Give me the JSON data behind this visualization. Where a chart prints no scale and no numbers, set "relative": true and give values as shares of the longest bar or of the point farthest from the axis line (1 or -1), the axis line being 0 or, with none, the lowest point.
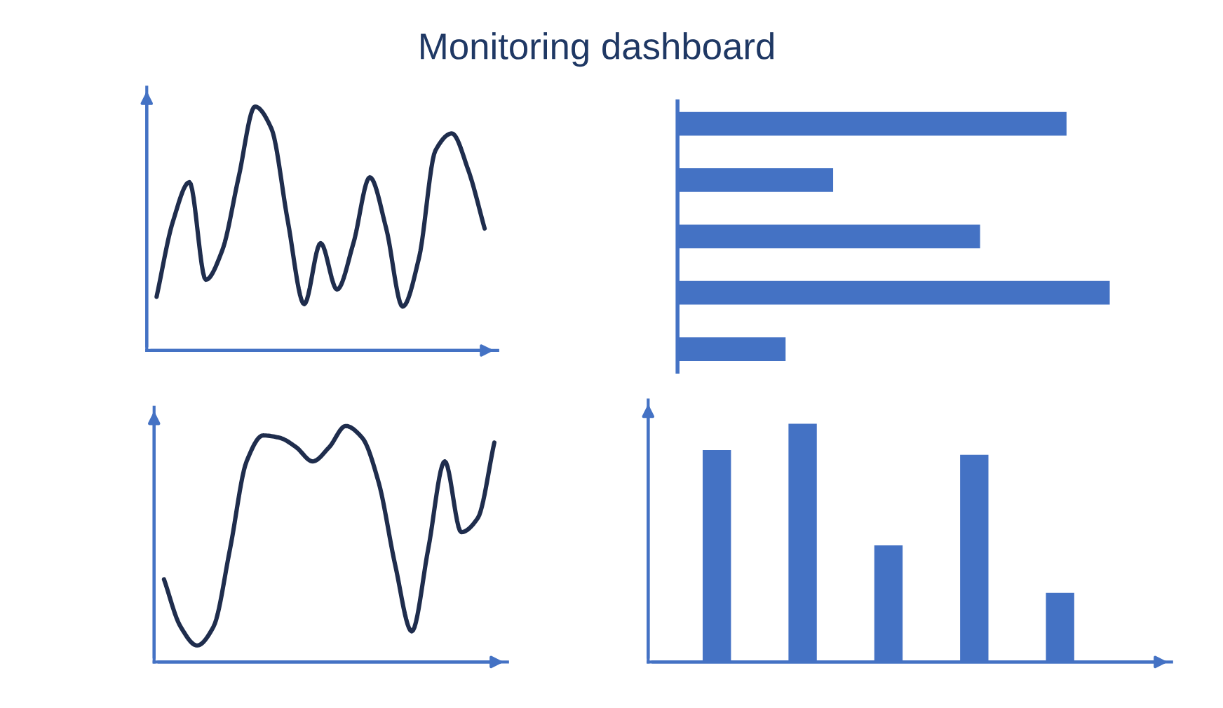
{
  "chart_data": [
    {
      "type": "line",
      "title": "Monitoring dashboard",
      "relative": true,
      "categories": [
        null,
        null,
        null,
        null,
        null,
        null,
        null,
        null,
        null,
        null,
        null,
        null,
        null,
        null,
        null,
        null,
        null,
        null,
        null,
        null,
        null
      ],
      "series": [
        {
          "color": "#1f2d4d",
          "values": [
            0.22,
            0.53,
            0.69,
            0.29,
            0.41,
            0.71,
            1.0,
            0.91,
            0.53,
            0.19,
            0.44,
            0.25,
            0.44,
            0.71,
            0.5,
            0.18,
            0.38,
            0.82,
            0.89,
            0.74,
            0.5
          ]
        }
      ]
    },
    {
      "type": "bar",
      "orientation": "horizontal",
      "relative": true,
      "categories": [
        null,
        null,
        null,
        null,
        null
      ],
      "series": [
        {
          "color": "#4472c4",
          "values": [
            0.9,
            0.36,
            0.7,
            1.0,
            0.25
          ]
        }
      ]
    },
    {
      "type": "line",
      "relative": true,
      "categories": [
        null,
        null,
        null,
        null,
        null,
        null,
        null,
        null,
        null,
        null,
        null,
        null,
        null,
        null,
        null,
        null,
        null,
        null,
        null,
        null,
        null
      ],
      "series": [
        {
          "color": "#1f2d4d",
          "values": [
            0.35,
            0.15,
            0.07,
            0.15,
            0.48,
            0.85,
            0.96,
            0.95,
            0.91,
            0.85,
            0.91,
            1.0,
            0.95,
            0.76,
            0.41,
            0.13,
            0.48,
            0.85,
            0.55,
            0.61,
            0.93
          ]
        }
      ]
    },
    {
      "type": "bar",
      "relative": true,
      "categories": [
        null,
        null,
        null,
        null,
        null
      ],
      "series": [
        {
          "color": "#4472c4",
          "values": [
            0.89,
            1.0,
            0.49,
            0.87,
            0.29
          ]
        }
      ]
    }
  ]
}
